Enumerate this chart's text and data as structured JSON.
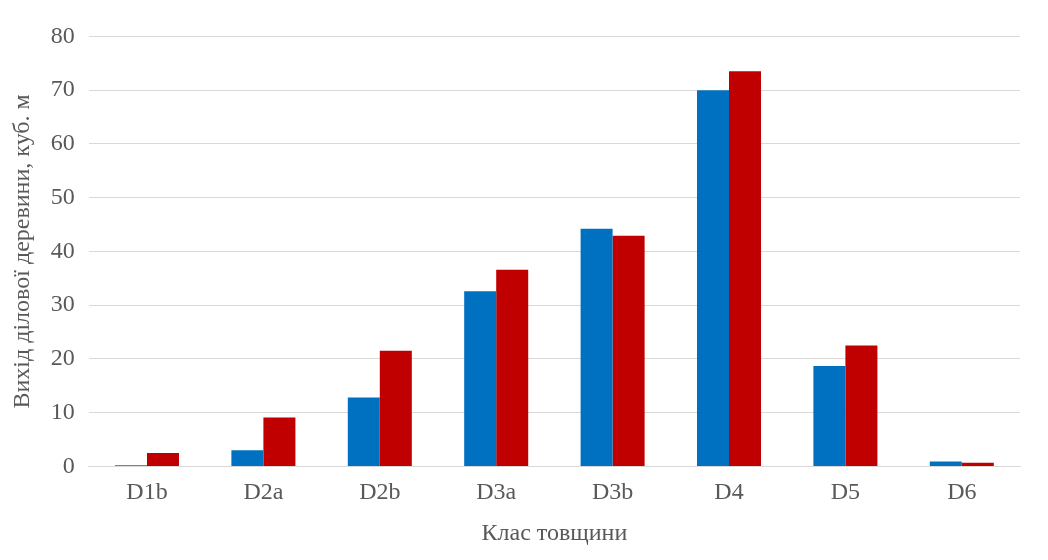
{
  "chart_data": {
    "type": "bar",
    "xlabel": "Клас товщини",
    "ylabel": "Вихід ділової деревини, куб. м",
    "categories": [
      "D1b",
      "D2a",
      "D2b",
      "D3a",
      "D3b",
      "D4",
      "D5",
      "D6"
    ],
    "series": [
      {
        "color": "#0070c0",
        "values": [
          0.2,
          3.0,
          12.8,
          32.6,
          44.2,
          70.0,
          18.7,
          0.9
        ]
      },
      {
        "color": "#c00000",
        "values": [
          2.5,
          9.1,
          21.5,
          36.6,
          42.9,
          73.5,
          22.5,
          0.7
        ]
      }
    ],
    "ylim": [
      0,
      80
    ],
    "yticks": [
      0,
      10,
      20,
      30,
      40,
      50,
      60,
      70,
      80
    ],
    "grid": "y",
    "legend": false
  }
}
